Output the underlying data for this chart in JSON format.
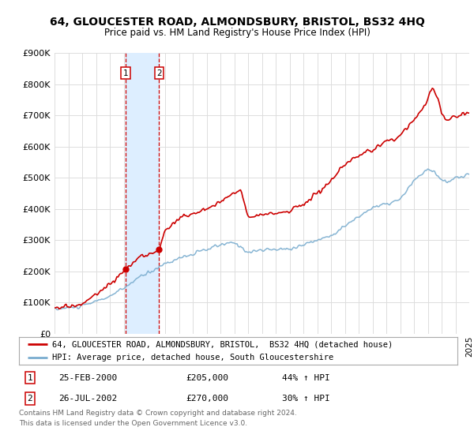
{
  "title": "64, GLOUCESTER ROAD, ALMONDSBURY, BRISTOL, BS32 4HQ",
  "subtitle": "Price paid vs. HM Land Registry's House Price Index (HPI)",
  "legend_line1": "64, GLOUCESTER ROAD, ALMONDSBURY, BRISTOL,  BS32 4HQ (detached house)",
  "legend_line2": "HPI: Average price, detached house, South Gloucestershire",
  "transactions": [
    {
      "num": 1,
      "date": "25-FEB-2000",
      "price": "£205,000",
      "change": "44% ↑ HPI",
      "year": 2000.14
    },
    {
      "num": 2,
      "date": "26-JUL-2002",
      "price": "£270,000",
      "change": "30% ↑ HPI",
      "year": 2002.57
    }
  ],
  "footer1": "Contains HM Land Registry data © Crown copyright and database right 2024.",
  "footer2": "This data is licensed under the Open Government Licence v3.0.",
  "red_color": "#cc0000",
  "blue_color": "#7aadcf",
  "shade_color": "#ddeeff",
  "background_color": "#ffffff",
  "grid_color": "#dddddd",
  "ylim": [
    0,
    900000
  ],
  "yticks": [
    0,
    100000,
    200000,
    300000,
    400000,
    500000,
    600000,
    700000,
    800000,
    900000
  ],
  "ytick_labels": [
    "£0",
    "£100K",
    "£200K",
    "£300K",
    "£400K",
    "£500K",
    "£600K",
    "£700K",
    "£800K",
    "£900K"
  ],
  "xstart": 1995,
  "xend": 2025
}
